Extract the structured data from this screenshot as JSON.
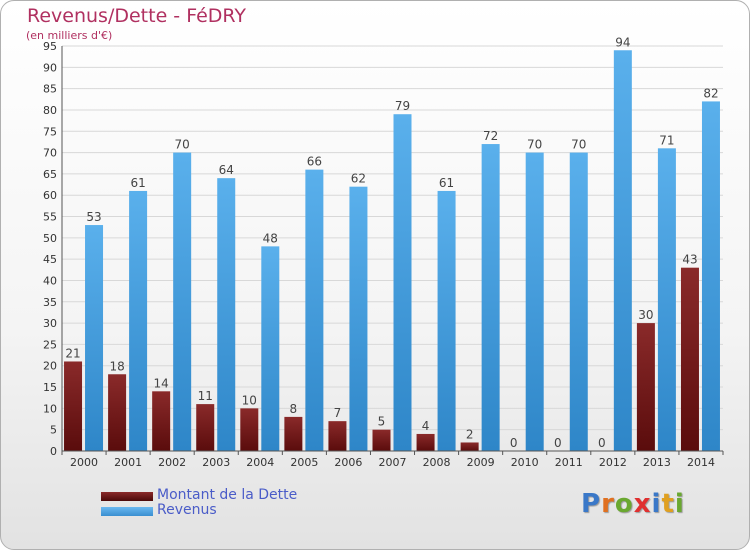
{
  "header": {
    "title": "Revenus/Dette - FéDRY",
    "subtitle": "(en milliers d'€)"
  },
  "legend": {
    "dette_label": "Montant de la Dette",
    "revenus_label": "Revenus"
  },
  "logo": {
    "text": "Proxiti"
  },
  "colors": {
    "dette": "#7a1a1a",
    "revenus": "#4da3e3",
    "title": "#b03060"
  },
  "chart_data": {
    "type": "bar",
    "categories": [
      "2000",
      "2001",
      "2002",
      "2003",
      "2004",
      "2005",
      "2006",
      "2007",
      "2008",
      "2009",
      "2010",
      "2011",
      "2012",
      "2013",
      "2014"
    ],
    "series": [
      {
        "name": "Montant de la Dette",
        "values": [
          21,
          18,
          14,
          11,
          10,
          8,
          7,
          5,
          4,
          2,
          0,
          0,
          0,
          30,
          43
        ]
      },
      {
        "name": "Revenus",
        "values": [
          53,
          61,
          70,
          64,
          48,
          66,
          62,
          79,
          61,
          72,
          70,
          70,
          94,
          71,
          82
        ]
      }
    ],
    "title": "Revenus/Dette - FéDRY",
    "subtitle": "(en milliers d'€)",
    "ylim": [
      0,
      95
    ],
    "yticks": [
      0,
      5,
      10,
      15,
      20,
      25,
      30,
      35,
      40,
      45,
      50,
      55,
      60,
      65,
      70,
      75,
      80,
      85,
      90,
      95
    ],
    "grid": true,
    "legend_position": "bottom-left"
  }
}
